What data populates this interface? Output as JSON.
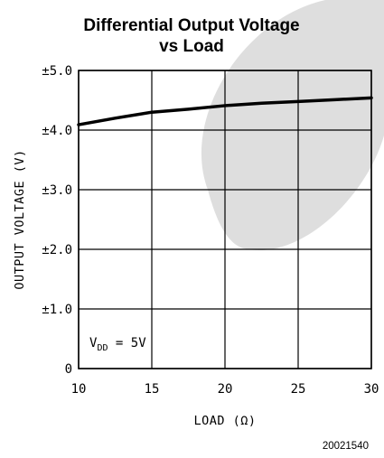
{
  "chart_data": {
    "type": "line",
    "title": "Differential Output Voltage",
    "subtitle": "vs Load",
    "xlabel": "LOAD (Ω)",
    "ylabel": "OUTPUT VOLTAGE (V)",
    "xlim": [
      10,
      30
    ],
    "ylim": [
      0,
      5
    ],
    "x_ticks": [
      10,
      15,
      20,
      25,
      30
    ],
    "x_tick_labels": [
      "10",
      "15",
      "20",
      "25",
      "30"
    ],
    "y_ticks": [
      0,
      1,
      2,
      3,
      4,
      5
    ],
    "y_tick_labels": [
      "0",
      "±1.0",
      "±2.0",
      "±3.0",
      "±4.0",
      "±5.0"
    ],
    "grid": true,
    "series": [
      {
        "x": [
          10,
          12.5,
          15,
          17.5,
          20,
          22.5,
          25,
          27.5,
          30
        ],
        "y": [
          4.09,
          4.2,
          4.3,
          4.35,
          4.41,
          4.45,
          4.48,
          4.51,
          4.54
        ]
      }
    ],
    "annotation": {
      "prefix": "V",
      "sub": "DD",
      "suffix": " = 5V"
    }
  },
  "figure_id": "20021540",
  "colors": {
    "line": "#000000",
    "grid": "#000000",
    "watermark": "#d8d8d8"
  }
}
